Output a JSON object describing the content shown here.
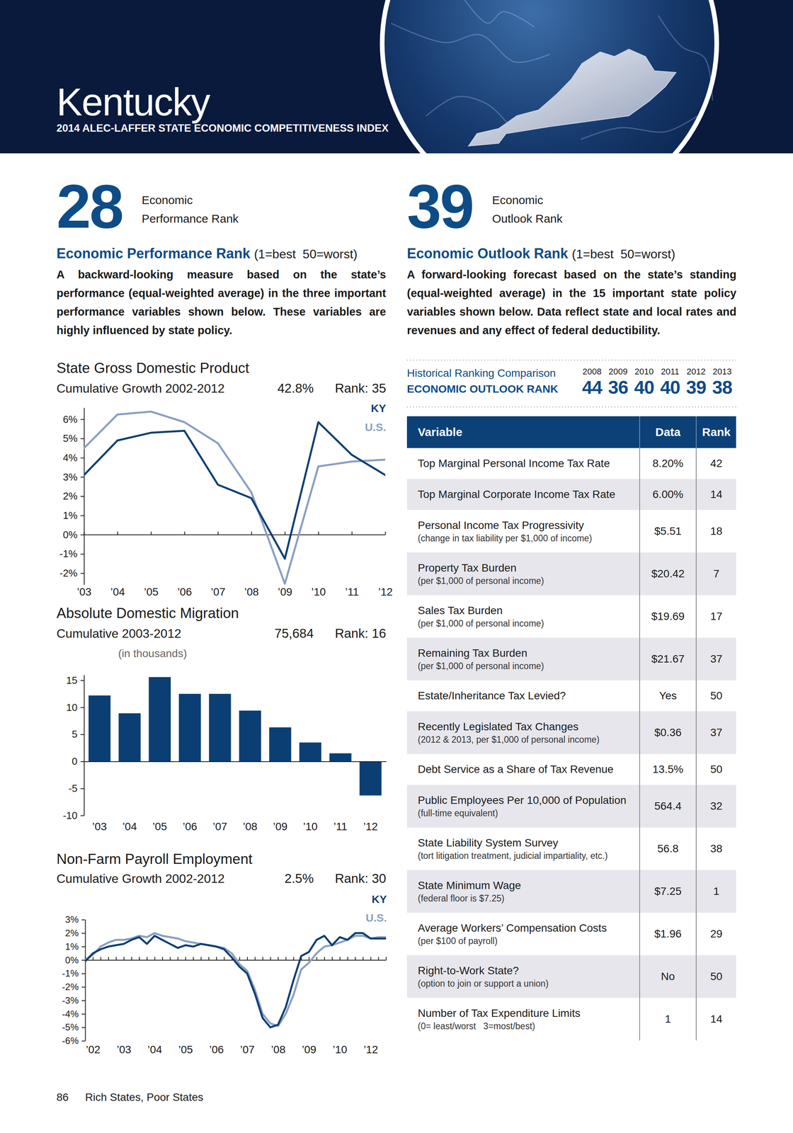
{
  "header": {
    "state": "Kentucky",
    "subtitle": "2014 ALEC-LAFFER STATE ECONOMIC COMPETITIVENESS INDEX"
  },
  "performance": {
    "rank": 28,
    "rank_label": [
      "Economic",
      "Performance Rank"
    ],
    "heading": "Economic Performance Rank",
    "scale_note": "(1=best  50=worst)",
    "description": "A backward-looking measure based on the state’s performance (equal-weighted average) in the three important performance variables shown below. These variables are highly influenced by state policy."
  },
  "outlook": {
    "rank": 39,
    "rank_label": [
      "Economic",
      "Outlook Rank"
    ],
    "heading": "Economic Outlook Rank",
    "scale_note": "(1=best  50=worst)",
    "description": "A forward-looking forecast based on the state’s standing (equal-weighted average) in the 15 important state policy variables shown below. Data reflect state and local rates and revenues and any effect of federal deductibility."
  },
  "history": {
    "title": "Historical Ranking Comparison",
    "subtitle": "ECONOMIC OUTLOOK RANK",
    "years": [
      2008,
      2009,
      2010,
      2011,
      2012,
      2013
    ],
    "ranks": [
      44,
      36,
      40,
      40,
      39,
      38
    ]
  },
  "table": {
    "columns": [
      "Variable",
      "Data",
      "Rank"
    ],
    "rows": [
      {
        "variable": "Top Marginal Personal Income Tax Rate",
        "data": "8.20%",
        "rank": 42
      },
      {
        "variable": "Top Marginal Corporate Income Tax Rate",
        "data": "6.00%",
        "rank": 14
      },
      {
        "variable": "Personal Income Tax Progressivity",
        "note": "(change in tax liability per $1,000 of income)",
        "data": "$5.51",
        "rank": 18
      },
      {
        "variable": "Property Tax Burden",
        "note": "(per $1,000 of personal income)",
        "data": "$20.42",
        "rank": 7
      },
      {
        "variable": "Sales Tax Burden",
        "note": "(per $1,000 of personal income)",
        "data": "$19.69",
        "rank": 17
      },
      {
        "variable": "Remaining Tax Burden",
        "note": "(per $1,000 of personal income)",
        "data": "$21.67",
        "rank": 37
      },
      {
        "variable": "Estate/Inheritance Tax Levied?",
        "data": "Yes",
        "rank": 50
      },
      {
        "variable": "Recently Legislated Tax Changes",
        "note": "(2012 & 2013, per $1,000 of personal income)",
        "data": "$0.36",
        "rank": 37
      },
      {
        "variable": "Debt Service as a Share of Tax Revenue",
        "data": "13.5%",
        "rank": 50
      },
      {
        "variable": "Public Employees Per 10,000 of Population",
        "note": "(full-time equivalent)",
        "data": "564.4",
        "rank": 32
      },
      {
        "variable": "State Liability System Survey",
        "note": "(tort litigation treatment, judicial impartiality, etc.)",
        "data": "56.8",
        "rank": 38
      },
      {
        "variable": "State Minimum Wage",
        "note": "(federal floor is $7.25)",
        "data": "$7.25",
        "rank": 1
      },
      {
        "variable": "Average Workers’ Compensation Costs",
        "note": "(per $100 of payroll)",
        "data": "$1.96",
        "rank": 29
      },
      {
        "variable": "Right-to-Work State?",
        "note": "(option to join or support a union)",
        "data": "No",
        "rank": 50
      },
      {
        "variable": "Number of Tax Expenditure Limits",
        "note": "(0= least/worst   3=most/best)",
        "data": "1",
        "rank": 14
      }
    ]
  },
  "chart_data": [
    {
      "type": "line",
      "title": "State Gross Domestic Product",
      "subtitle": "Cumulative Growth 2002-2012",
      "annotations": [
        "42.8%",
        "Rank: 35"
      ],
      "categories": [
        "’03",
        "’04",
        "’05",
        "’06",
        "’07",
        "’08",
        "’09",
        "’10",
        "’11",
        "’12"
      ],
      "series": [
        {
          "name": "KY",
          "color": "#0b3f74",
          "values": [
            3.1,
            4.9,
            5.3,
            5.4,
            2.6,
            1.9,
            -1.25,
            5.85,
            4.15,
            3.1
          ]
        },
        {
          "name": "U.S.",
          "color": "#8a9ec4",
          "values": [
            4.5,
            6.25,
            6.4,
            5.85,
            4.75,
            2.2,
            -2.55,
            3.55,
            3.8,
            3.9
          ]
        }
      ],
      "ylim": [
        -2.6,
        6.6
      ],
      "yticks": [
        {
          "value": -2,
          "label": "-2%"
        },
        {
          "value": -1,
          "label": "-1%"
        },
        {
          "value": 0,
          "label": "0%"
        },
        {
          "value": 1,
          "label": "1%"
        },
        {
          "value": 2,
          "label": "2%"
        },
        {
          "value": 3,
          "label": "3%"
        },
        {
          "value": 4,
          "label": "4%"
        },
        {
          "value": 5,
          "label": "5%"
        },
        {
          "value": 6,
          "label": "6%"
        }
      ],
      "legend": "top-right"
    },
    {
      "type": "bar",
      "title": "Absolute Domestic Migration",
      "subtitle": "Cumulative 2003-2012",
      "ylabel": "(in thousands)",
      "annotations": [
        "75,684",
        "Rank: 16"
      ],
      "categories": [
        "’03",
        "’04",
        "’05",
        "’06",
        "’07",
        "’08",
        "’09",
        "’10",
        "’11",
        "’12"
      ],
      "values": [
        12.2,
        8.9,
        15.6,
        12.5,
        12.5,
        9.4,
        6.3,
        3.5,
        1.5,
        -6.3
      ],
      "color": "#0b3f74",
      "ylim": [
        -10,
        16
      ],
      "yticks": [
        -10,
        -5,
        0,
        5,
        10,
        15
      ]
    },
    {
      "type": "line",
      "title": "Non-Farm Payroll Employment",
      "subtitle": "Cumulative Growth 2002-2012",
      "annotations": [
        "2.5%",
        "Rank: 30"
      ],
      "categories": [
        null,
        "’02",
        null,
        null,
        null,
        "’03",
        null,
        null,
        null,
        "’04",
        null,
        null,
        null,
        "’05",
        null,
        null,
        null,
        "’06",
        null,
        null,
        null,
        "’07",
        null,
        null,
        null,
        "’08",
        null,
        null,
        null,
        "’09",
        null,
        null,
        null,
        "’10",
        null,
        null,
        null,
        "’12",
        null,
        null
      ],
      "series": [
        {
          "name": "KY",
          "color": "#0b3f74",
          "values": [
            -0.1,
            0.5,
            0.8,
            1.0,
            1.1,
            1.2,
            1.5,
            1.7,
            1.2,
            1.8,
            1.5,
            1.2,
            0.9,
            1.1,
            1.0,
            1.2,
            1.1,
            1.0,
            0.8,
            0.2,
            -0.5,
            -1.0,
            -2.5,
            -4.3,
            -5.0,
            -4.8,
            -3.5,
            -1.5,
            0.3,
            0.6,
            1.5,
            1.8,
            1.1,
            1.7,
            1.5,
            2.0,
            2.0,
            1.6,
            1.6,
            1.6
          ]
        },
        {
          "name": "U.S.",
          "color": "#8a9ec4",
          "values": [
            0.0,
            0.4,
            1.0,
            1.3,
            1.5,
            1.5,
            1.6,
            1.8,
            1.7,
            2.0,
            1.8,
            1.7,
            1.6,
            1.4,
            1.3,
            1.2,
            1.1,
            1.0,
            0.9,
            0.5,
            -0.3,
            -0.8,
            -2.2,
            -4.0,
            -4.7,
            -4.9,
            -4.0,
            -2.6,
            -0.7,
            -0.2,
            0.5,
            1.0,
            1.1,
            1.3,
            1.5,
            1.8,
            1.8,
            1.6,
            1.7,
            1.7
          ]
        }
      ],
      "ylim": [
        -6,
        3
      ],
      "yticks": [
        {
          "value": -6,
          "label": "-6%"
        },
        {
          "value": -5,
          "label": "-5%"
        },
        {
          "value": -4,
          "label": "-4%"
        },
        {
          "value": -3,
          "label": "-3%"
        },
        {
          "value": -2,
          "label": "-2%"
        },
        {
          "value": -1,
          "label": "-1%"
        },
        {
          "value": 0,
          "label": "0%"
        },
        {
          "value": 1,
          "label": "1%"
        },
        {
          "value": 2,
          "label": "2%"
        },
        {
          "value": 3,
          "label": "3%"
        }
      ],
      "legend": "top-right"
    }
  ],
  "footer": {
    "page": 86,
    "publication": "Rich States, Poor States"
  }
}
